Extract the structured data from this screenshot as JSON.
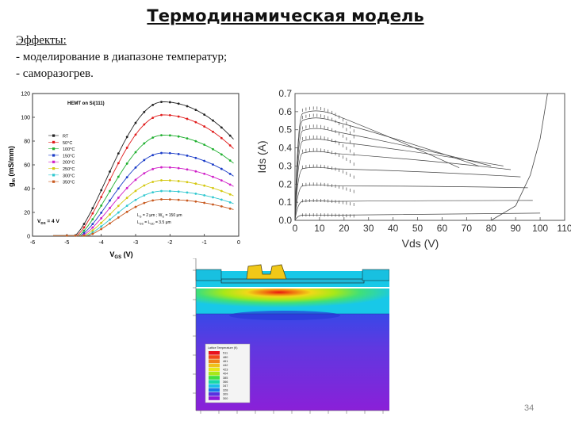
{
  "slide": {
    "title": "Термодинамическая модель",
    "effects_heading": "Эффекты:",
    "effects": [
      "- моделирование в диапазоне температур;",
      "- саморазогрев."
    ],
    "page_number": "34"
  },
  "chart_data": [
    {
      "type": "line",
      "annotation": "HEMT on Si(111)",
      "xlabel": "V",
      "xlabel_sub": "GS",
      "xlabel_unit": " (V)",
      "ylabel": "g",
      "ylabel_sub": "m",
      "ylabel_unit": " (mS/mm)",
      "xlim": [
        -6,
        0
      ],
      "ylim": [
        0,
        120
      ],
      "xticks": [
        -6,
        -5,
        -4,
        -3,
        -2,
        -1,
        0
      ],
      "yticks": [
        0,
        20,
        40,
        60,
        80,
        100,
        120
      ],
      "vds_label": "V",
      "vds_sub": "DS",
      "vds_value": " = 4 V",
      "geom_line1": "L",
      "geom_line1_rest": " = 2 μm ; W",
      "geom_line1_tail": " = 150 μm",
      "geom_line2": "L",
      "geom_line2_rest": " = L",
      "geom_line2_tail": " = 3.5 μm",
      "series": [
        {
          "name": "RT",
          "color": "#222222",
          "marker": "square",
          "peak": 113,
          "vth": -4.8
        },
        {
          "name": "50°C",
          "color": "#e01c1c",
          "marker": "circle",
          "peak": 102,
          "vth": -4.75
        },
        {
          "name": "100°C",
          "color": "#20b030",
          "marker": "triangle",
          "peak": 85,
          "vth": -4.7
        },
        {
          "name": "150°C",
          "color": "#1a3cc8",
          "marker": "tri-down",
          "peak": 70,
          "vth": -4.65
        },
        {
          "name": "200°C",
          "color": "#d020c8",
          "marker": "diamond",
          "peak": 58,
          "vth": -4.6
        },
        {
          "name": "250°C",
          "color": "#d4c810",
          "marker": "triangle",
          "peak": 47,
          "vth": -4.55
        },
        {
          "name": "300°C",
          "color": "#30c8d0",
          "marker": "star",
          "peak": 38,
          "vth": -4.5
        },
        {
          "name": "350°C",
          "color": "#c85a20",
          "marker": "star",
          "peak": 31,
          "vth": -4.45
        }
      ],
      "peak_x": -2.2
    },
    {
      "type": "line",
      "xlabel": "Vds (V)",
      "ylabel": "Ids (A)",
      "xlim": [
        0,
        110
      ],
      "ylim": [
        0,
        0.7
      ],
      "xticks": [
        0,
        10,
        20,
        30,
        40,
        50,
        60,
        70,
        80,
        90,
        100,
        110
      ],
      "yticks": [
        0.0,
        0.1,
        0.2,
        0.3,
        0.4,
        0.5,
        0.6,
        0.7
      ],
      "ytick_labels": [
        "0.0",
        "0.1",
        "0.2",
        "0.3",
        "0.4",
        "0.5",
        "0.6",
        "0.7"
      ],
      "curves": [
        {
          "peak": 0.62,
          "end": 0.29,
          "end_x": 67
        },
        {
          "peak": 0.58,
          "end": 0.3,
          "end_x": 75
        },
        {
          "peak": 0.52,
          "end": 0.3,
          "end_x": 80
        },
        {
          "peak": 0.46,
          "end": 0.3,
          "end_x": 85
        },
        {
          "peak": 0.39,
          "end": 0.28,
          "end_x": 88
        },
        {
          "peak": 0.3,
          "end": 0.24,
          "end_x": 92
        },
        {
          "peak": 0.2,
          "end": 0.18,
          "end_x": 95
        },
        {
          "peak": 0.11,
          "end": 0.11,
          "end_x": 97
        },
        {
          "peak": 0.03,
          "end": 0.04,
          "end_x": 100
        }
      ],
      "breakdown": [
        [
          80,
          0.0
        ],
        [
          90,
          0.08
        ],
        [
          96,
          0.25
        ],
        [
          100,
          0.45
        ],
        [
          103,
          0.7
        ]
      ]
    }
  ],
  "thermal_map": {
    "legend_title": "Lattice Temperature (K)",
    "legend_values": [
      "511",
      "480",
      "461",
      "442",
      "423",
      "404",
      "385",
      "366",
      "347",
      "328",
      "309",
      "300"
    ],
    "colors": [
      "#e8101c",
      "#f04818",
      "#f08018",
      "#f0c018",
      "#e8e818",
      "#a8e818",
      "#40e040",
      "#18d8a8",
      "#18c0e8",
      "#1878e8",
      "#5830e0",
      "#9018d8"
    ]
  }
}
